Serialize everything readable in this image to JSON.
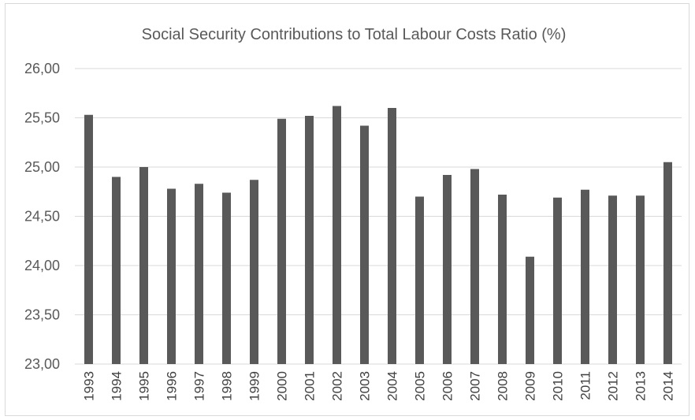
{
  "chart_data": {
    "type": "bar",
    "title": "Social Security Contributions to Total Labour Costs Ratio (%)",
    "xlabel": "",
    "ylabel": "",
    "categories": [
      "1993",
      "1994",
      "1995",
      "1996",
      "1997",
      "1998",
      "1999",
      "2000",
      "2001",
      "2002",
      "2003",
      "2004",
      "2005",
      "2006",
      "2007",
      "2008",
      "2009",
      "2010",
      "2011",
      "2012",
      "2013",
      "2014"
    ],
    "values": [
      25.53,
      24.9,
      25.0,
      24.78,
      24.83,
      24.74,
      24.87,
      25.49,
      25.52,
      25.62,
      25.42,
      25.6,
      24.7,
      24.92,
      24.98,
      24.72,
      24.09,
      24.69,
      24.77,
      24.71,
      24.71,
      25.05
    ],
    "ylim": [
      23.0,
      26.0
    ],
    "yticks": [
      23.0,
      23.5,
      24.0,
      24.5,
      25.0,
      25.5,
      26.0
    ],
    "ytick_labels": [
      "23,00",
      "23,50",
      "24,00",
      "24,50",
      "25,00",
      "25,50",
      "26,00"
    ],
    "grid": true,
    "legend": "none",
    "bar_color": "#595959",
    "grid_color": "#d9d9d9"
  }
}
